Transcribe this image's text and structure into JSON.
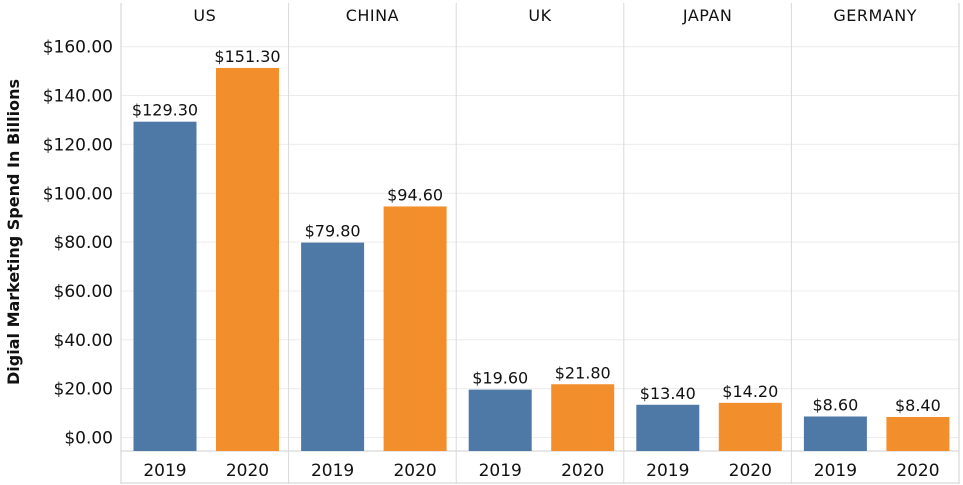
{
  "chart_data": {
    "type": "bar",
    "ylabel": "Digial Marketing Spend In Billions",
    "ylim": [
      0,
      160
    ],
    "yticks": [
      0,
      20,
      40,
      60,
      80,
      100,
      120,
      140,
      160
    ],
    "ytick_labels": [
      "$0.00",
      "$20.00",
      "$40.00",
      "$60.00",
      "$80.00",
      "$100.00",
      "$120.00",
      "$140.00",
      "$160.00"
    ],
    "grid": true,
    "panels": [
      {
        "name": "US",
        "categories": [
          "2019",
          "2020"
        ],
        "values": [
          129.3,
          151.3
        ],
        "labels": [
          "$129.30",
          "$151.30"
        ]
      },
      {
        "name": "CHINA",
        "categories": [
          "2019",
          "2020"
        ],
        "values": [
          79.8,
          94.6
        ],
        "labels": [
          "$79.80",
          "$94.60"
        ]
      },
      {
        "name": "UK",
        "categories": [
          "2019",
          "2020"
        ],
        "values": [
          19.6,
          21.8
        ],
        "labels": [
          "$19.60",
          "$21.80"
        ]
      },
      {
        "name": "JAPAN",
        "categories": [
          "2019",
          "2020"
        ],
        "values": [
          13.4,
          14.2
        ],
        "labels": [
          "$13.40",
          "$14.20"
        ]
      },
      {
        "name": "GERMANY",
        "categories": [
          "2019",
          "2020"
        ],
        "values": [
          8.6,
          8.4
        ],
        "labels": [
          "$8.60",
          "$8.40"
        ]
      }
    ],
    "colors": {
      "2019": "#4e79a7",
      "2020": "#f28e2b"
    }
  }
}
